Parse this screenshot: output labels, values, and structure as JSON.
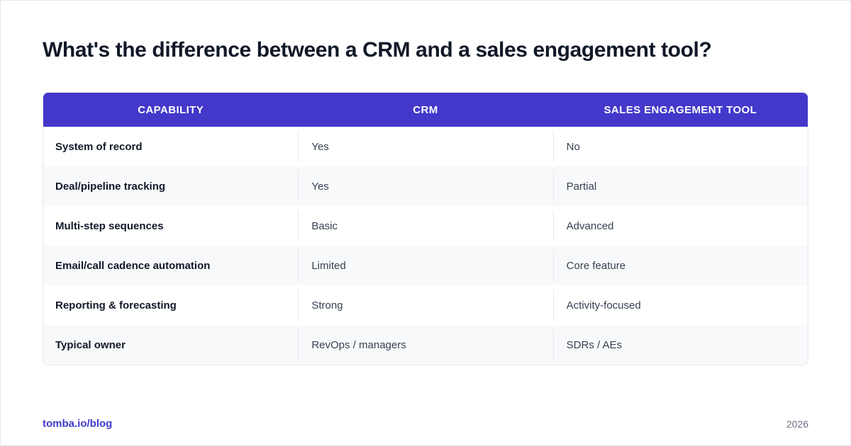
{
  "page": {
    "title": "What's the difference between a CRM and a sales engagement tool?"
  },
  "table": {
    "headers": [
      "CAPABILITY",
      "CRM",
      "SALES ENGAGEMENT TOOL"
    ],
    "rows": [
      [
        "System of record",
        "Yes",
        "No"
      ],
      [
        "Deal/pipeline tracking",
        "Yes",
        "Partial"
      ],
      [
        "Multi-step sequences",
        "Basic",
        "Advanced"
      ],
      [
        "Email/call cadence automation",
        "Limited",
        "Core feature"
      ],
      [
        "Reporting & forecasting",
        "Strong",
        "Activity-focused"
      ],
      [
        "Typical owner",
        "RevOps / managers",
        "SDRs / AEs"
      ]
    ]
  },
  "footer": {
    "link": "tomba.io/blog",
    "year": "2026"
  },
  "colors": {
    "header_bg": "#4338ca",
    "link": "#4338ca",
    "row_alt": "#f8f9fb"
  }
}
